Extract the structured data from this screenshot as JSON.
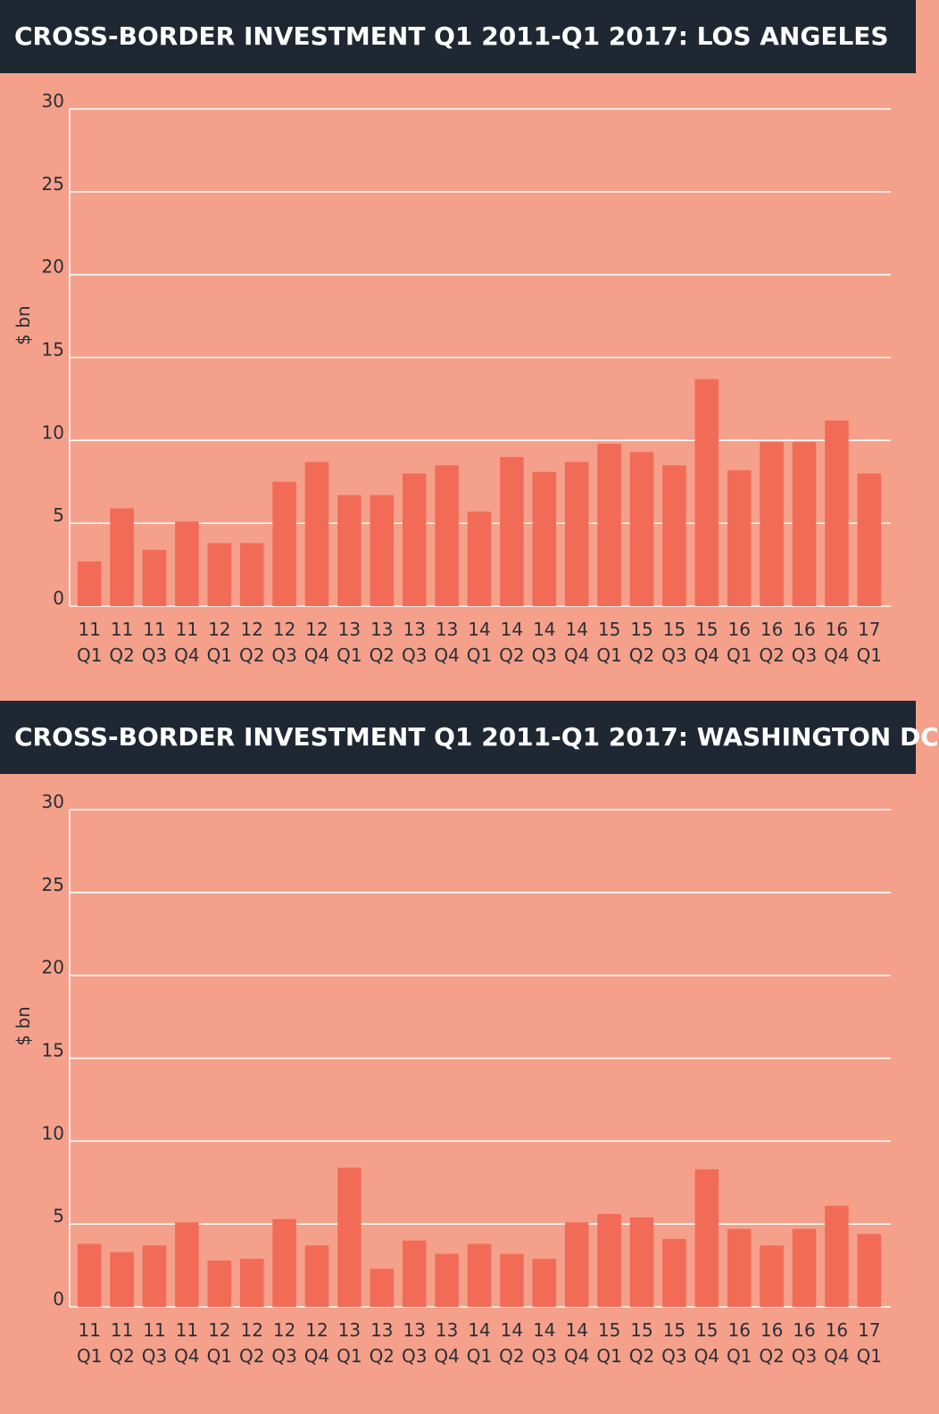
{
  "chart_data": [
    {
      "type": "bar",
      "title": "CROSS-BORDER INVESTMENT Q1 2011-Q1 2017: LOS ANGELES",
      "ylabel": "$ bn",
      "ylim": [
        0,
        30
      ],
      "yticks": [
        0,
        5,
        10,
        15,
        20,
        25,
        30
      ],
      "grid": true,
      "bar_color": "#f26b57",
      "categories": [
        [
          "11",
          "Q1"
        ],
        [
          "11",
          "Q2"
        ],
        [
          "11",
          "Q3"
        ],
        [
          "11",
          "Q4"
        ],
        [
          "12",
          "Q1"
        ],
        [
          "12",
          "Q2"
        ],
        [
          "12",
          "Q3"
        ],
        [
          "12",
          "Q4"
        ],
        [
          "13",
          "Q1"
        ],
        [
          "13",
          "Q2"
        ],
        [
          "13",
          "Q3"
        ],
        [
          "13",
          "Q4"
        ],
        [
          "14",
          "Q1"
        ],
        [
          "14",
          "Q2"
        ],
        [
          "14",
          "Q3"
        ],
        [
          "14",
          "Q4"
        ],
        [
          "15",
          "Q1"
        ],
        [
          "15",
          "Q2"
        ],
        [
          "15",
          "Q3"
        ],
        [
          "15",
          "Q4"
        ],
        [
          "16",
          "Q1"
        ],
        [
          "16",
          "Q2"
        ],
        [
          "16",
          "Q3"
        ],
        [
          "16",
          "Q4"
        ],
        [
          "17",
          "Q1"
        ]
      ],
      "values": [
        2.7,
        5.9,
        3.4,
        5.1,
        3.8,
        3.8,
        7.5,
        8.7,
        6.7,
        6.7,
        8.0,
        8.5,
        5.7,
        9.0,
        8.1,
        8.7,
        9.8,
        9.3,
        8.5,
        13.7,
        8.2,
        9.9,
        9.9,
        11.2,
        8.0
      ]
    },
    {
      "type": "bar",
      "title": "CROSS-BORDER INVESTMENT Q1 2011-Q1 2017: WASHINGTON DC",
      "ylabel": "$ bn",
      "ylim": [
        0,
        30
      ],
      "yticks": [
        0,
        5,
        10,
        15,
        20,
        25,
        30
      ],
      "grid": true,
      "bar_color": "#f26b57",
      "categories": [
        [
          "11",
          "Q1"
        ],
        [
          "11",
          "Q2"
        ],
        [
          "11",
          "Q3"
        ],
        [
          "11",
          "Q4"
        ],
        [
          "12",
          "Q1"
        ],
        [
          "12",
          "Q2"
        ],
        [
          "12",
          "Q3"
        ],
        [
          "12",
          "Q4"
        ],
        [
          "13",
          "Q1"
        ],
        [
          "13",
          "Q2"
        ],
        [
          "13",
          "Q3"
        ],
        [
          "13",
          "Q4"
        ],
        [
          "14",
          "Q1"
        ],
        [
          "14",
          "Q2"
        ],
        [
          "14",
          "Q3"
        ],
        [
          "14",
          "Q4"
        ],
        [
          "15",
          "Q1"
        ],
        [
          "15",
          "Q2"
        ],
        [
          "15",
          "Q3"
        ],
        [
          "15",
          "Q4"
        ],
        [
          "16",
          "Q1"
        ],
        [
          "16",
          "Q2"
        ],
        [
          "16",
          "Q3"
        ],
        [
          "16",
          "Q4"
        ],
        [
          "17",
          "Q1"
        ]
      ],
      "values": [
        3.8,
        3.3,
        3.7,
        5.1,
        2.8,
        2.9,
        5.3,
        3.7,
        8.4,
        2.3,
        4.0,
        3.2,
        3.8,
        3.2,
        2.9,
        5.1,
        5.6,
        5.4,
        4.1,
        8.3,
        4.7,
        3.7,
        4.7,
        6.1,
        4.4
      ]
    }
  ]
}
